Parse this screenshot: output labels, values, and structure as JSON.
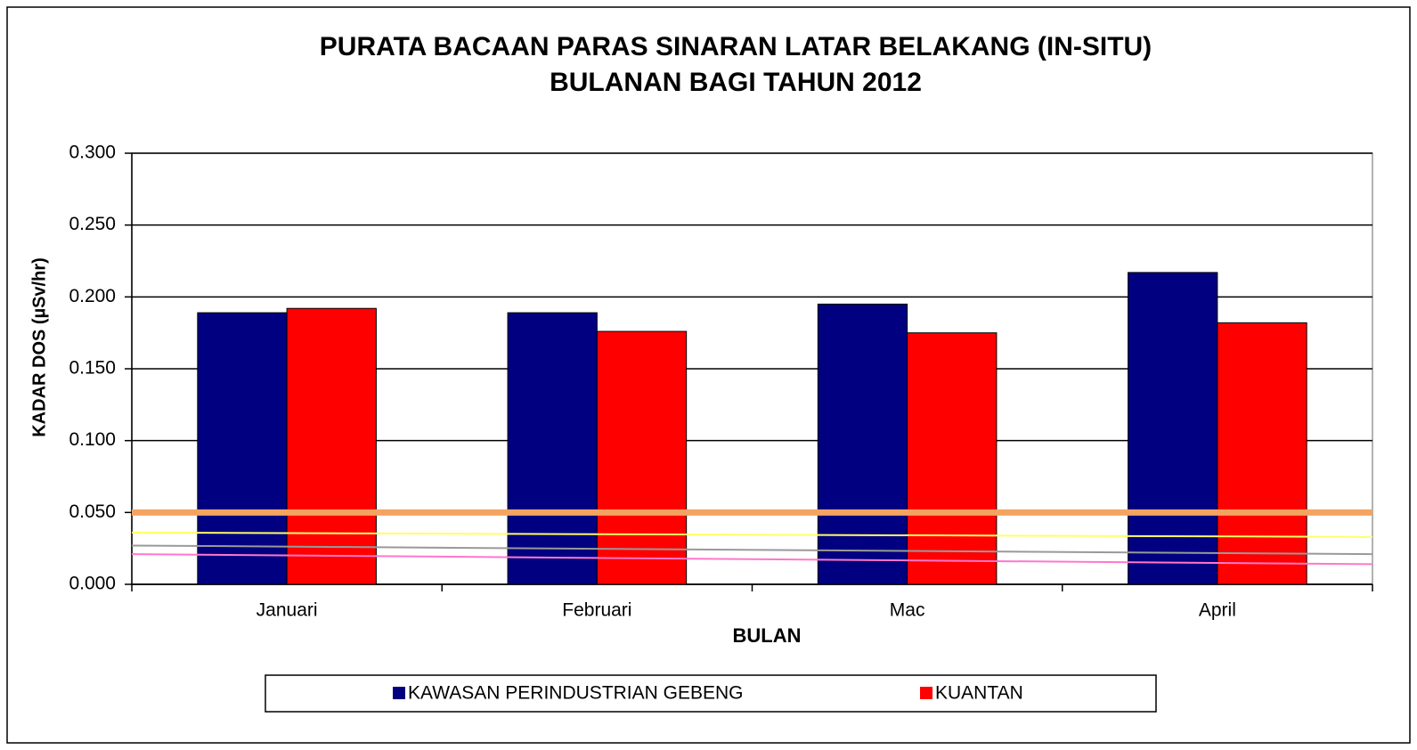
{
  "chart_data": {
    "type": "bar",
    "title": [
      "PURATA BACAAN PARAS SINARAN LATAR BELAKANG (IN-SITU)",
      "BULANAN BAGI TAHUN 2012"
    ],
    "x_label": "BULAN",
    "y_label": "KADAR DOS (µSv/hr)",
    "categories": [
      "Januari",
      "Februari",
      "Mac",
      "April"
    ],
    "series": [
      {
        "name": "KAWASAN PERINDUSTRIAN GEBENG",
        "color": "#000080",
        "values": [
          0.189,
          0.189,
          0.195,
          0.217
        ]
      },
      {
        "name": "KUANTAN",
        "color": "#ff0000",
        "values": [
          0.192,
          0.176,
          0.175,
          0.182
        ]
      }
    ],
    "reference_lines": [
      {
        "color": "#f4a460",
        "width": 7,
        "values": [
          0.05,
          0.05
        ]
      },
      {
        "color": "#ffff66",
        "width": 2,
        "values": [
          0.036,
          0.033
        ]
      },
      {
        "color": "#999999",
        "width": 2,
        "values": [
          0.027,
          0.021
        ]
      },
      {
        "color": "#ff77cc",
        "width": 2,
        "values": [
          0.021,
          0.014
        ]
      }
    ],
    "ylim": [
      0,
      0.3
    ],
    "yticks": [
      {
        "value": 0,
        "label": "0.000"
      },
      {
        "value": 0.05,
        "label": "0.050"
      },
      {
        "value": 0.1,
        "label": "0.100"
      },
      {
        "value": 0.15,
        "label": "0.150"
      },
      {
        "value": 0.2,
        "label": "0.200"
      },
      {
        "value": 0.25,
        "label": "0.250"
      },
      {
        "value": 0.3,
        "label": "0.300"
      }
    ],
    "grid": true
  }
}
